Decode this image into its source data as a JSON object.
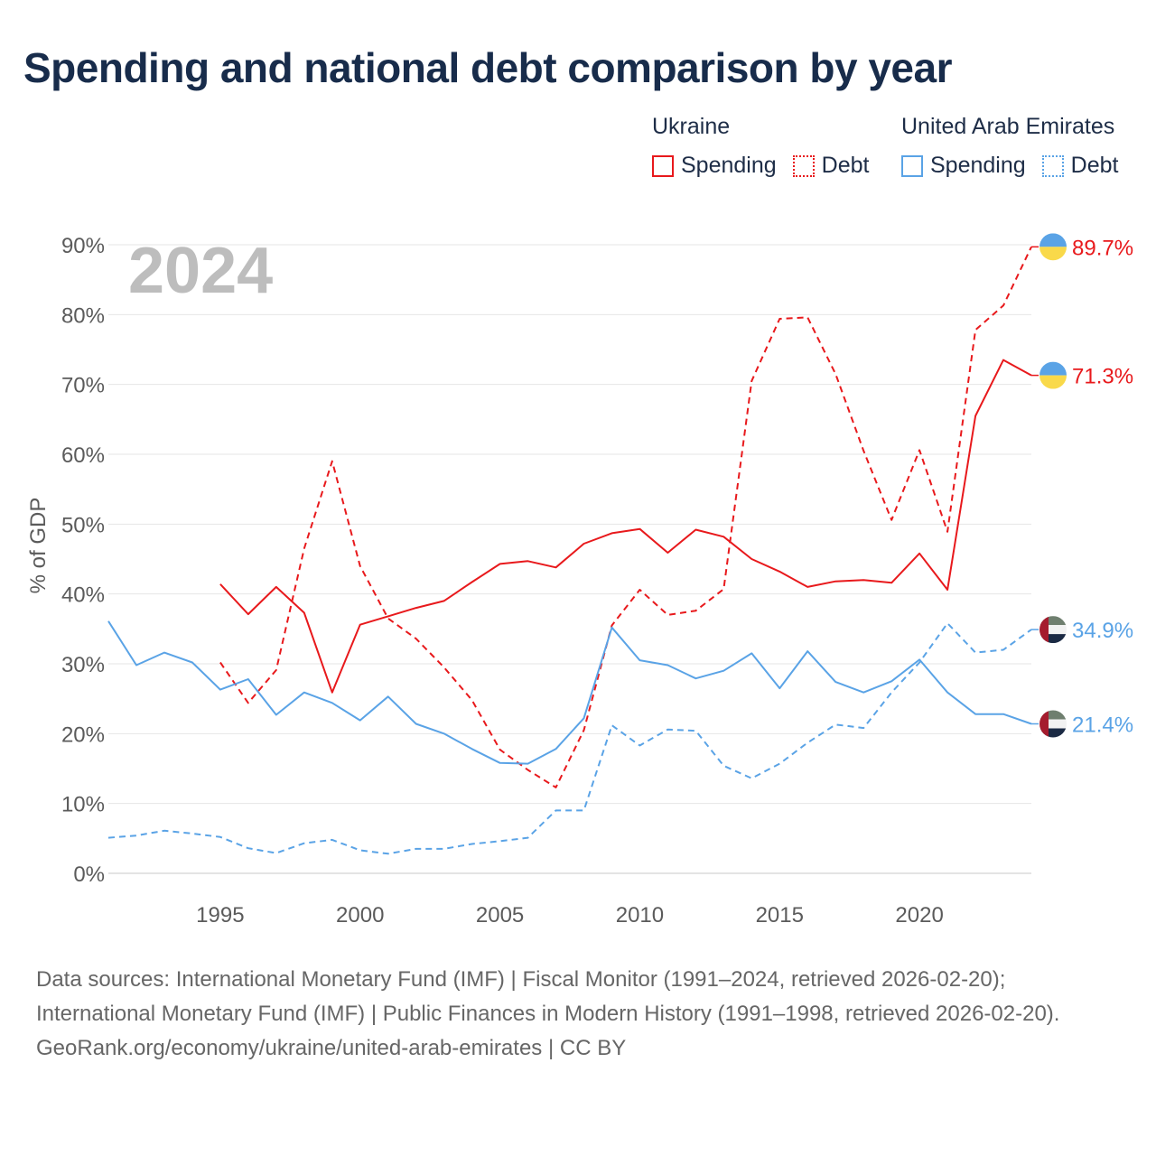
{
  "title": "Spending and national debt comparison by year",
  "legend": {
    "groups": [
      {
        "country": "Ukraine",
        "spending_label": "Spending",
        "debt_label": "Debt",
        "color": "#e8191c"
      },
      {
        "country": "United Arab Emirates",
        "spending_label": "Spending",
        "debt_label": "Debt",
        "color": "#5aa3e6"
      }
    ]
  },
  "year_label": "2024",
  "footer": {
    "sources": "Data sources: International Monetary Fund (IMF) | Fiscal Monitor (1991–2024, retrieved 2026-02-20); International Monetary Fund (IMF) | Public Finances in Modern History (1991–1998, retrieved 2026-02-20).",
    "credit": "GeoRank.org/economy/ukraine/united-arab-emirates | CC BY"
  },
  "chart_data": {
    "type": "line",
    "ylabel": "% of GDP",
    "xlabel": "",
    "xlim": [
      1991,
      2024
    ],
    "ylim": [
      0,
      90
    ],
    "yticks": [
      0,
      10,
      20,
      30,
      40,
      50,
      60,
      70,
      80,
      90
    ],
    "ytick_labels": [
      "0%",
      "10%",
      "20%",
      "30%",
      "40%",
      "50%",
      "60%",
      "70%",
      "80%",
      "90%"
    ],
    "xticks": [
      1995,
      2000,
      2005,
      2010,
      2015,
      2020
    ],
    "xtick_labels": [
      "1995",
      "2000",
      "2005",
      "2010",
      "2015",
      "2020"
    ],
    "grid": true,
    "legend_position": "top-right",
    "series": [
      {
        "name": "Ukraine Spending",
        "country": "Ukraine",
        "metric": "Spending",
        "color": "#e8191c",
        "dash": false,
        "start_year": 1995,
        "values": [
          41.4,
          37.1,
          41.0,
          37.3,
          25.9,
          35.6,
          36.8,
          38.0,
          39.0,
          41.7,
          44.3,
          44.7,
          43.8,
          47.2,
          48.7,
          49.3,
          45.9,
          49.2,
          48.2,
          45.0,
          43.2,
          41.0,
          41.8,
          42.0,
          41.6,
          45.8,
          40.6,
          65.5,
          73.5,
          71.3
        ],
        "end_label": "71.3%"
      },
      {
        "name": "Ukraine Debt",
        "country": "Ukraine",
        "metric": "Debt",
        "color": "#e8191c",
        "dash": true,
        "start_year": 1995,
        "values": [
          30.2,
          24.4,
          29.1,
          46.5,
          59.0,
          44.0,
          36.5,
          33.6,
          29.5,
          24.8,
          17.7,
          14.8,
          12.3,
          20.5,
          35.5,
          40.6,
          37.0,
          37.6,
          40.7,
          70.5,
          79.4,
          79.6,
          71.5,
          60.5,
          50.6,
          60.6,
          48.9,
          77.8,
          81.3,
          89.7
        ],
        "end_label": "89.7%"
      },
      {
        "name": "United Arab Emirates Spending",
        "country": "United Arab Emirates",
        "metric": "Spending",
        "color": "#5aa3e6",
        "dash": false,
        "start_year": 1991,
        "values": [
          36.1,
          29.8,
          31.6,
          30.2,
          26.3,
          27.8,
          22.7,
          25.9,
          24.4,
          21.9,
          25.3,
          21.4,
          20.0,
          17.8,
          15.8,
          15.7,
          17.8,
          22.2,
          35.2,
          30.5,
          29.8,
          27.9,
          29.0,
          31.5,
          26.5,
          31.8,
          27.4,
          25.9,
          27.5,
          30.6,
          25.9,
          22.8,
          22.8,
          21.4
        ],
        "end_label": "21.4%"
      },
      {
        "name": "United Arab Emirates Debt",
        "country": "United Arab Emirates",
        "metric": "Debt",
        "color": "#5aa3e6",
        "dash": true,
        "start_year": 1991,
        "values": [
          5.1,
          5.4,
          6.1,
          5.7,
          5.2,
          3.6,
          2.9,
          4.3,
          4.8,
          3.3,
          2.8,
          3.5,
          3.5,
          4.2,
          4.6,
          5.1,
          9.0,
          9.0,
          21.2,
          18.3,
          20.6,
          20.4,
          15.4,
          13.6,
          15.7,
          18.7,
          21.3,
          20.8,
          25.9,
          30.2,
          35.8,
          31.6,
          32.0,
          34.9
        ],
        "end_label": "34.9%"
      }
    ]
  }
}
